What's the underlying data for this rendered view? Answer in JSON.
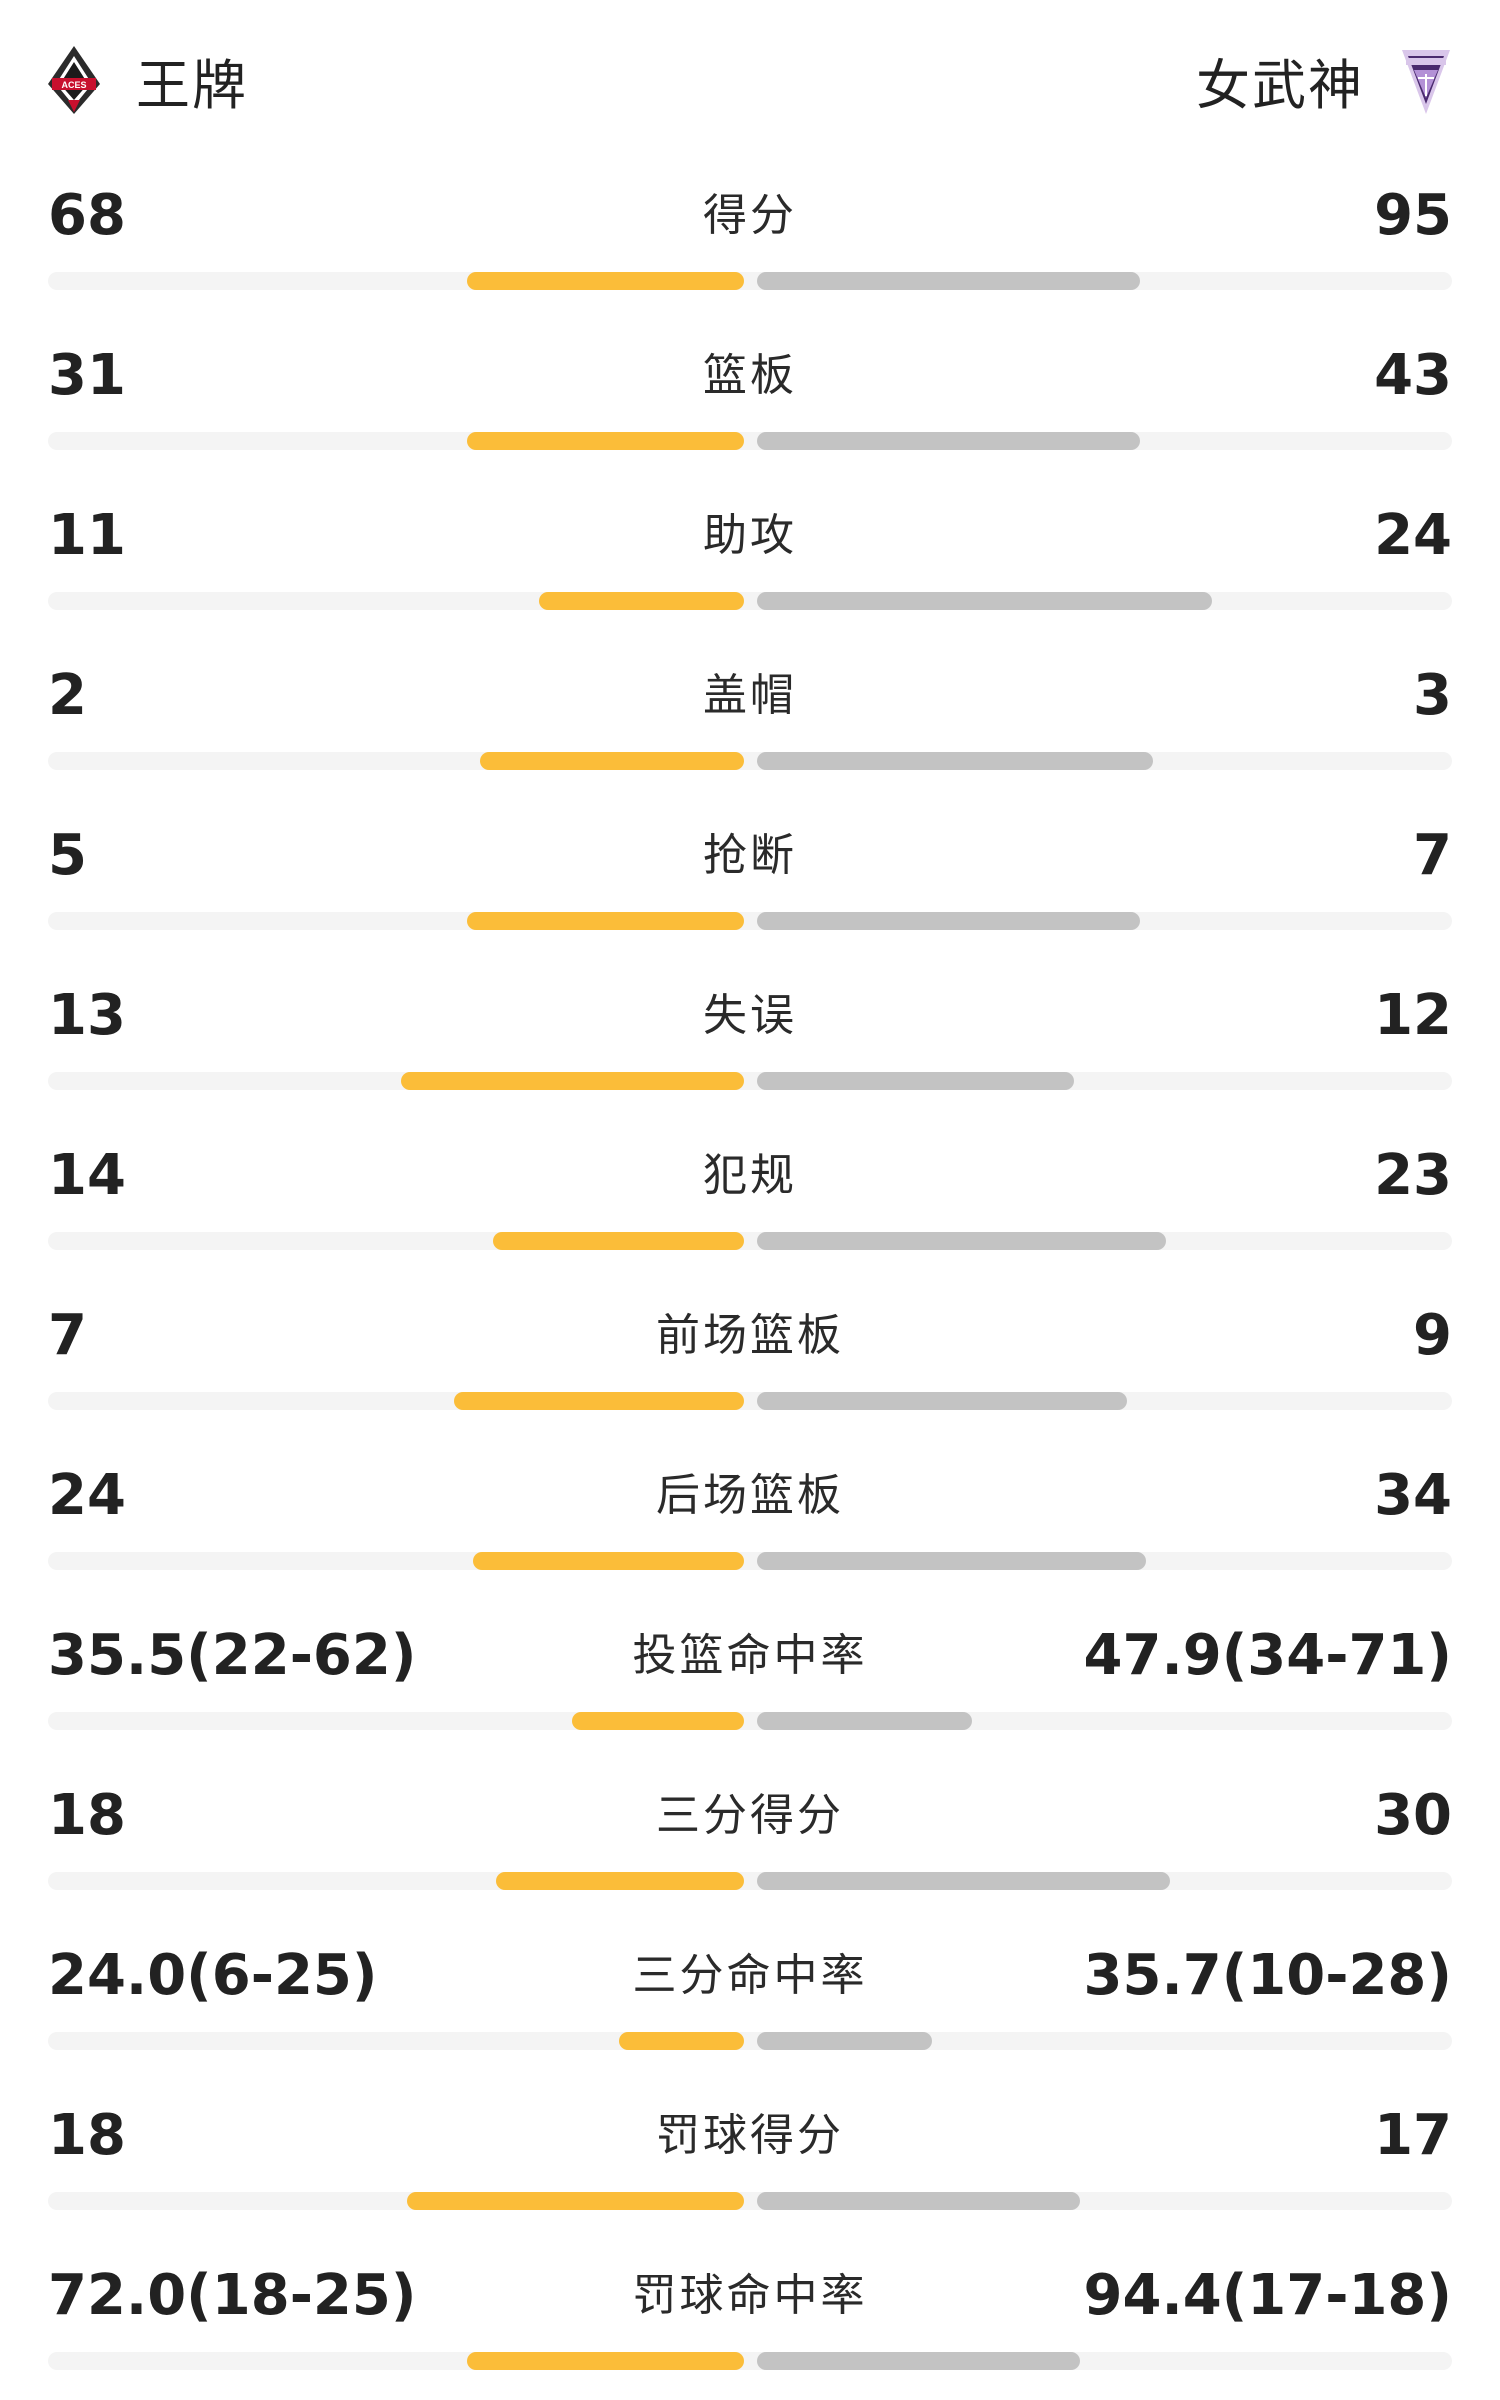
{
  "header": {
    "home_team": "王牌",
    "away_team": "女武神",
    "home_logo_icon": "aces-logo-icon",
    "away_logo_icon": "valkyries-logo-icon"
  },
  "colors": {
    "home_bar": "#fbbd39",
    "away_bar": "#c3c3c3",
    "track": "#f4f4f4"
  },
  "stats": [
    {
      "label": "得分",
      "home": "68",
      "away": "95",
      "home_share": 0.42,
      "away_share": 0.58
    },
    {
      "label": "篮板",
      "home": "31",
      "away": "43",
      "home_share": 0.42,
      "away_share": 0.58
    },
    {
      "label": "助攻",
      "home": "11",
      "away": "24",
      "home_share": 0.31,
      "away_share": 0.69
    },
    {
      "label": "盖帽",
      "home": "2",
      "away": "3",
      "home_share": 0.4,
      "away_share": 0.6
    },
    {
      "label": "抢断",
      "home": "5",
      "away": "7",
      "home_share": 0.42,
      "away_share": 0.58
    },
    {
      "label": "失误",
      "home": "13",
      "away": "12",
      "home_share": 0.52,
      "away_share": 0.48
    },
    {
      "label": "犯规",
      "home": "14",
      "away": "23",
      "home_share": 0.38,
      "away_share": 0.62
    },
    {
      "label": "前场篮板",
      "home": "7",
      "away": "9",
      "home_share": 0.44,
      "away_share": 0.56
    },
    {
      "label": "后场篮板",
      "home": "24",
      "away": "34",
      "home_share": 0.41,
      "away_share": 0.59
    },
    {
      "label": "投篮命中率",
      "home": "35.5(22-62)",
      "away": "47.9(34-71)",
      "home_share": 0.26,
      "away_share": 0.325
    },
    {
      "label": "三分得分",
      "home": "18",
      "away": "30",
      "home_share": 0.375,
      "away_share": 0.625
    },
    {
      "label": "三分命中率",
      "home": "24.0(6-25)",
      "away": "35.7(10-28)",
      "home_share": 0.19,
      "away_share": 0.265
    },
    {
      "label": "罚球得分",
      "home": "18",
      "away": "17",
      "home_share": 0.51,
      "away_share": 0.49
    },
    {
      "label": "罚球命中率",
      "home": "72.0(18-25)",
      "away": "94.4(17-18)",
      "home_share": 0.42,
      "away_share": 0.49
    }
  ]
}
